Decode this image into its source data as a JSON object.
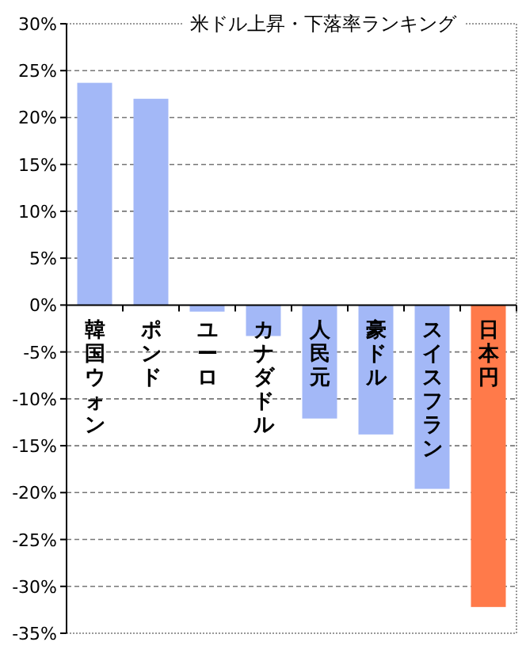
{
  "chart_data": {
    "type": "bar",
    "title": "米ドル上昇・下落率ランキング",
    "categories": [
      "韓国ウォン",
      "ポンド",
      "ユーロ",
      "カナダドル",
      "人民元",
      "豪ドル",
      "スイスフラン",
      "日本円"
    ],
    "values": [
      23.7,
      22.0,
      -0.7,
      -3.3,
      -12.1,
      -13.8,
      -19.6,
      -32.2
    ],
    "colors": [
      "#a3b8f7",
      "#a3b8f7",
      "#a3b8f7",
      "#a3b8f7",
      "#a3b8f7",
      "#a3b8f7",
      "#a3b8f7",
      "#ff7a4a"
    ],
    "ylim": [
      -35,
      30
    ],
    "yticks": [
      {
        "value": -35,
        "label": "-35%"
      },
      {
        "value": -30,
        "label": "-30%"
      },
      {
        "value": -25,
        "label": "-25%"
      },
      {
        "value": -20,
        "label": "-20%"
      },
      {
        "value": -15,
        "label": "-15%"
      },
      {
        "value": -10,
        "label": "-10%"
      },
      {
        "value": -5,
        "label": "-5%"
      },
      {
        "value": 0,
        "label": "0%"
      },
      {
        "value": 5,
        "label": "5%"
      },
      {
        "value": 10,
        "label": "10%"
      },
      {
        "value": 15,
        "label": "15%"
      },
      {
        "value": 20,
        "label": "20%"
      },
      {
        "value": 25,
        "label": "25%"
      },
      {
        "value": 30,
        "label": "30%"
      }
    ],
    "grid": "y"
  }
}
